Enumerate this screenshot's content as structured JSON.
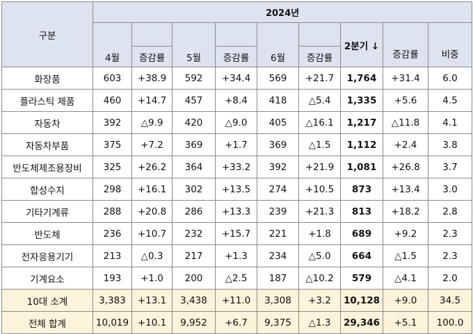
{
  "header": {
    "category": "구분",
    "year": "2024년",
    "months": [
      "4월",
      "5월",
      "6월"
    ],
    "quarter": "2분기 ↓",
    "growth": "증감률",
    "share": "비중"
  },
  "rows": [
    {
      "name": "화장품",
      "m4": "603",
      "g4": "+38.9",
      "m5": "592",
      "g5": "+34.4",
      "m6": "569",
      "g6": "+21.7",
      "q": "1,764",
      "gq": "+31.4",
      "share": "6.0"
    },
    {
      "name": "플라스틱 제품",
      "m4": "460",
      "g4": "+14.7",
      "m5": "457",
      "g5": "+8.4",
      "m6": "418",
      "g6": "△5.4",
      "q": "1,335",
      "gq": "+5.6",
      "share": "4.5"
    },
    {
      "name": "자동차",
      "m4": "392",
      "g4": "△9.9",
      "m5": "420",
      "g5": "△9.0",
      "m6": "405",
      "g6": "△16.1",
      "q": "1,217",
      "gq": "△11.8",
      "share": "4.1"
    },
    {
      "name": "자동차부품",
      "m4": "375",
      "g4": "+7.2",
      "m5": "369",
      "g5": "+1.7",
      "m6": "369",
      "g6": "△1.5",
      "q": "1,112",
      "gq": "+2.4",
      "share": "3.8"
    },
    {
      "name": "반도체제조용장비",
      "m4": "325",
      "g4": "+26.2",
      "m5": "364",
      "g5": "+33.2",
      "m6": "392",
      "g6": "+21.9",
      "q": "1,081",
      "gq": "+26.8",
      "share": "3.7"
    },
    {
      "name": "합성수지",
      "m4": "298",
      "g4": "+16.1",
      "m5": "302",
      "g5": "+13.5",
      "m6": "274",
      "g6": "+10.5",
      "q": "873",
      "gq": "+13.4",
      "share": "3.0"
    },
    {
      "name": "기타기계류",
      "m4": "288",
      "g4": "+20.8",
      "m5": "286",
      "g5": "+13.3",
      "m6": "239",
      "g6": "+21.3",
      "q": "813",
      "gq": "+18.2",
      "share": "2.8"
    },
    {
      "name": "반도체",
      "m4": "236",
      "g4": "+10.7",
      "m5": "232",
      "g5": "+15.7",
      "m6": "221",
      "g6": "+1.8",
      "q": "689",
      "gq": "+9.2",
      "share": "2.3"
    },
    {
      "name": "전자응용기기",
      "m4": "213",
      "g4": "△0.3",
      "m5": "217",
      "g5": "+1.3",
      "m6": "234",
      "g6": "△5.0",
      "q": "664",
      "gq": "△1.5",
      "share": "2.3"
    },
    {
      "name": "기계요소",
      "m4": "193",
      "g4": "+1.0",
      "m5": "200",
      "g5": "△2.5",
      "m6": "187",
      "g6": "△10.2",
      "q": "579",
      "gq": "△4.1",
      "share": "2.0"
    }
  ],
  "summary": [
    {
      "name": "10대 소계",
      "m4": "3,383",
      "g4": "+13.1",
      "m5": "3,438",
      "g5": "+11.0",
      "m6": "3,308",
      "g6": "+3.2",
      "q": "10,128",
      "gq": "+9.0",
      "share": "34.5"
    },
    {
      "name": "전체 합계",
      "m4": "10,019",
      "g4": "+10.1",
      "m5": "9,952",
      "g5": "+6.7",
      "m6": "9,375",
      "g6": "△1.3",
      "q": "29,346",
      "gq": "+5.1",
      "share": "100.0"
    }
  ],
  "colors": {
    "header_bg": "#dde3ef",
    "summary_bg": "#fbf3da",
    "border": "#8a8a8a"
  }
}
